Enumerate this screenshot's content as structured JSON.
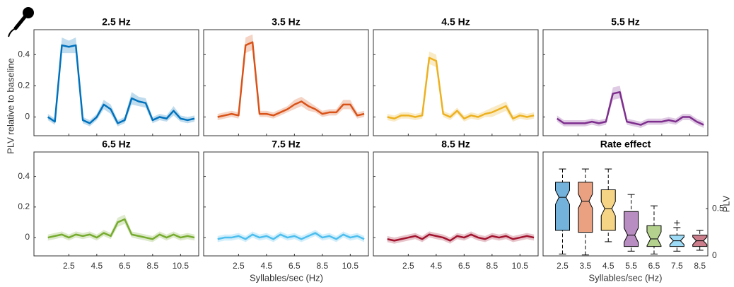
{
  "ylabel": "PLV relative to baseline",
  "xlabel": "Syllables/sec (Hz)",
  "chart_data": [
    {
      "type": "line",
      "title": "2.5 Hz",
      "color": "#0072bd",
      "x": [
        1,
        1.5,
        2,
        2.5,
        3,
        3.5,
        4,
        4.5,
        5,
        5.5,
        6,
        6.5,
        7,
        7.5,
        8,
        8.5,
        9,
        9.5,
        10,
        10.5,
        11,
        11.5
      ],
      "values": [
        0,
        -0.03,
        0.46,
        0.45,
        0.46,
        -0.02,
        -0.04,
        0,
        0.08,
        0.05,
        -0.04,
        -0.02,
        0.12,
        0.1,
        0.09,
        -0.02,
        0,
        -0.01,
        0.04,
        -0.01,
        -0.02,
        -0.01
      ],
      "error": [
        0.02,
        0.02,
        0.05,
        0.04,
        0.05,
        0.02,
        0.02,
        0.02,
        0.03,
        0.03,
        0.02,
        0.02,
        0.04,
        0.03,
        0.03,
        0.02,
        0.02,
        0.02,
        0.03,
        0.02,
        0.02,
        0.02
      ],
      "xlim": [
        0,
        11.8
      ],
      "ylim": [
        -0.12,
        0.56
      ],
      "xticks": [
        2.5,
        4.5,
        6.5,
        8.5,
        10.5
      ],
      "yticks": [
        0,
        0.2,
        0.4
      ],
      "show_xtick_labels": false,
      "show_ytick_labels": true
    },
    {
      "type": "line",
      "title": "3.5 Hz",
      "color": "#d95319",
      "x": [
        1,
        1.5,
        2,
        2.5,
        3,
        3.5,
        4,
        4.5,
        5,
        5.5,
        6,
        6.5,
        7,
        7.5,
        8,
        8.5,
        9,
        9.5,
        10,
        10.5,
        11,
        11.5
      ],
      "values": [
        0,
        0.01,
        0.02,
        0.01,
        0.46,
        0.48,
        0.02,
        0.02,
        0.01,
        0.03,
        0.05,
        0.08,
        0.1,
        0.07,
        0.05,
        0.02,
        0.03,
        0.03,
        0.08,
        0.08,
        0.01,
        0.02
      ],
      "error": [
        0.02,
        0.02,
        0.02,
        0.02,
        0.05,
        0.05,
        0.02,
        0.02,
        0.02,
        0.02,
        0.02,
        0.03,
        0.03,
        0.03,
        0.02,
        0.02,
        0.02,
        0.02,
        0.03,
        0.03,
        0.02,
        0.02
      ],
      "xlim": [
        0,
        11.8
      ],
      "ylim": [
        -0.12,
        0.56
      ],
      "xticks": [
        2.5,
        4.5,
        6.5,
        8.5,
        10.5
      ],
      "yticks": [
        0,
        0.2,
        0.4
      ],
      "show_xtick_labels": false,
      "show_ytick_labels": false
    },
    {
      "type": "line",
      "title": "4.5 Hz",
      "color": "#edb120",
      "x": [
        1,
        1.5,
        2,
        2.5,
        3,
        3.5,
        4,
        4.5,
        5,
        5.5,
        6,
        6.5,
        7,
        7.5,
        8,
        8.5,
        9,
        9.5,
        10,
        10.5,
        11,
        11.5
      ],
      "values": [
        0,
        -0.01,
        0.01,
        0.01,
        0,
        0.01,
        0.38,
        0.36,
        0.02,
        0,
        0.04,
        -0.01,
        0.01,
        0,
        0.02,
        0.03,
        0.05,
        0.07,
        -0.01,
        0.01,
        0,
        0.01
      ],
      "error": [
        0.02,
        0.02,
        0.02,
        0.02,
        0.02,
        0.02,
        0.04,
        0.04,
        0.02,
        0.02,
        0.02,
        0.02,
        0.02,
        0.02,
        0.02,
        0.03,
        0.03,
        0.03,
        0.02,
        0.02,
        0.02,
        0.02
      ],
      "xlim": [
        0,
        11.8
      ],
      "ylim": [
        -0.12,
        0.56
      ],
      "xticks": [
        2.5,
        4.5,
        6.5,
        8.5,
        10.5
      ],
      "yticks": [
        0,
        0.2,
        0.4
      ],
      "show_xtick_labels": false,
      "show_ytick_labels": false
    },
    {
      "type": "line",
      "title": "5.5 Hz",
      "color": "#7e2f8e",
      "x": [
        1,
        1.5,
        2,
        2.5,
        3,
        3.5,
        4,
        4.5,
        5,
        5.5,
        6,
        6.5,
        7,
        7.5,
        8,
        8.5,
        9,
        9.5,
        10,
        10.5,
        11,
        11.5
      ],
      "values": [
        -0.01,
        -0.04,
        -0.04,
        -0.04,
        -0.04,
        -0.03,
        -0.04,
        -0.03,
        0.15,
        0.16,
        -0.03,
        -0.04,
        -0.05,
        -0.03,
        -0.03,
        -0.03,
        -0.02,
        -0.03,
        0,
        0,
        -0.03,
        -0.05
      ],
      "error": [
        0.02,
        0.02,
        0.02,
        0.02,
        0.02,
        0.02,
        0.02,
        0.02,
        0.04,
        0.04,
        0.02,
        0.02,
        0.02,
        0.02,
        0.02,
        0.02,
        0.02,
        0.02,
        0.02,
        0.02,
        0.02,
        0.02
      ],
      "xlim": [
        0,
        11.8
      ],
      "ylim": [
        -0.12,
        0.56
      ],
      "xticks": [
        2.5,
        4.5,
        6.5,
        8.5,
        10.5
      ],
      "yticks": [
        0,
        0.2,
        0.4
      ],
      "show_xtick_labels": false,
      "show_ytick_labels": false
    },
    {
      "type": "line",
      "title": "6.5 Hz",
      "color": "#77ac30",
      "x": [
        1,
        1.5,
        2,
        2.5,
        3,
        3.5,
        4,
        4.5,
        5,
        5.5,
        6,
        6.5,
        7,
        7.5,
        8,
        8.5,
        9,
        9.5,
        10,
        10.5,
        11,
        11.5
      ],
      "values": [
        0,
        0.01,
        0.02,
        0,
        0.02,
        0.01,
        0.02,
        0,
        0.03,
        0.01,
        0.1,
        0.12,
        0.02,
        0.01,
        0,
        -0.01,
        0.02,
        0,
        0.02,
        0,
        0.01,
        0
      ],
      "error": [
        0.02,
        0.02,
        0.02,
        0.02,
        0.02,
        0.02,
        0.02,
        0.02,
        0.02,
        0.02,
        0.03,
        0.03,
        0.02,
        0.02,
        0.02,
        0.02,
        0.02,
        0.02,
        0.02,
        0.02,
        0.02,
        0.02
      ],
      "xlim": [
        0,
        11.8
      ],
      "ylim": [
        -0.12,
        0.56
      ],
      "xticks": [
        2.5,
        4.5,
        6.5,
        8.5,
        10.5
      ],
      "yticks": [
        0,
        0.2,
        0.4
      ],
      "show_xtick_labels": true,
      "show_ytick_labels": true
    },
    {
      "type": "line",
      "title": "7.5 Hz",
      "color": "#4dbeee",
      "x": [
        1,
        1.5,
        2,
        2.5,
        3,
        3.5,
        4,
        4.5,
        5,
        5.5,
        6,
        6.5,
        7,
        7.5,
        8,
        8.5,
        9,
        9.5,
        10,
        10.5,
        11,
        11.5
      ],
      "values": [
        -0.01,
        0,
        0,
        0.01,
        -0.01,
        0.02,
        0,
        0.01,
        -0.01,
        0.02,
        0,
        0.01,
        -0.01,
        0.01,
        0.03,
        0,
        0.01,
        -0.01,
        0.02,
        0,
        0.01,
        -0.01
      ],
      "error": [
        0.02,
        0.02,
        0.02,
        0.02,
        0.02,
        0.02,
        0.02,
        0.02,
        0.02,
        0.02,
        0.02,
        0.02,
        0.02,
        0.02,
        0.02,
        0.02,
        0.02,
        0.02,
        0.02,
        0.02,
        0.02,
        0.02
      ],
      "xlim": [
        0,
        11.8
      ],
      "ylim": [
        -0.12,
        0.56
      ],
      "xticks": [
        2.5,
        4.5,
        6.5,
        8.5,
        10.5
      ],
      "yticks": [
        0,
        0.2,
        0.4
      ],
      "show_xtick_labels": true,
      "show_ytick_labels": false
    },
    {
      "type": "line",
      "title": "8.5 Hz",
      "color": "#a2142f",
      "x": [
        1,
        1.5,
        2,
        2.5,
        3,
        3.5,
        4,
        4.5,
        5,
        5.5,
        6,
        6.5,
        7,
        7.5,
        8,
        8.5,
        9,
        9.5,
        10,
        10.5,
        11,
        11.5
      ],
      "values": [
        -0.01,
        -0.02,
        -0.01,
        0,
        0.01,
        -0.01,
        0.02,
        0.01,
        0,
        -0.02,
        0.01,
        0,
        0.02,
        0,
        -0.01,
        0.01,
        0,
        0.01,
        -0.01,
        0,
        0.01,
        0
      ],
      "error": [
        0.02,
        0.02,
        0.02,
        0.02,
        0.02,
        0.02,
        0.02,
        0.02,
        0.02,
        0.02,
        0.02,
        0.02,
        0.02,
        0.02,
        0.02,
        0.02,
        0.02,
        0.02,
        0.02,
        0.02,
        0.02,
        0.02
      ],
      "xlim": [
        0,
        11.8
      ],
      "ylim": [
        -0.12,
        0.56
      ],
      "xticks": [
        2.5,
        4.5,
        6.5,
        8.5,
        10.5
      ],
      "yticks": [
        0,
        0.2,
        0.4
      ],
      "show_xtick_labels": true,
      "show_ytick_labels": false
    },
    {
      "type": "box",
      "title": "Rate effect",
      "ylabel": "PLV",
      "xlabel": "Syllables/sec (Hz)",
      "categories": [
        "2.5",
        "3.5",
        "4.5",
        "5.5",
        "6.5",
        "7.5",
        "8.5"
      ],
      "colors": [
        "#0072bd",
        "#d95319",
        "#edb120",
        "#7e2f8e",
        "#77ac30",
        "#4dbeee",
        "#a2142f"
      ],
      "whisker_low": [
        0.02,
        0.01,
        0.15,
        0.05,
        0.02,
        0.05,
        0.06
      ],
      "q1": [
        0.27,
        0.25,
        0.27,
        0.1,
        0.1,
        0.1,
        0.1
      ],
      "median": [
        0.62,
        0.58,
        0.5,
        0.22,
        0.18,
        0.16,
        0.16
      ],
      "q3": [
        0.78,
        0.78,
        0.7,
        0.47,
        0.32,
        0.22,
        0.22
      ],
      "whisker_high": [
        0.92,
        0.92,
        0.92,
        0.65,
        0.53,
        0.3,
        0.27
      ],
      "outliers": [
        [],
        [],
        [],
        [],
        [],
        [
          0.35
        ],
        []
      ],
      "ylim": [
        0,
        1.1
      ],
      "yticks": [
        0,
        0.5
      ],
      "y_axis_side": "right"
    }
  ]
}
